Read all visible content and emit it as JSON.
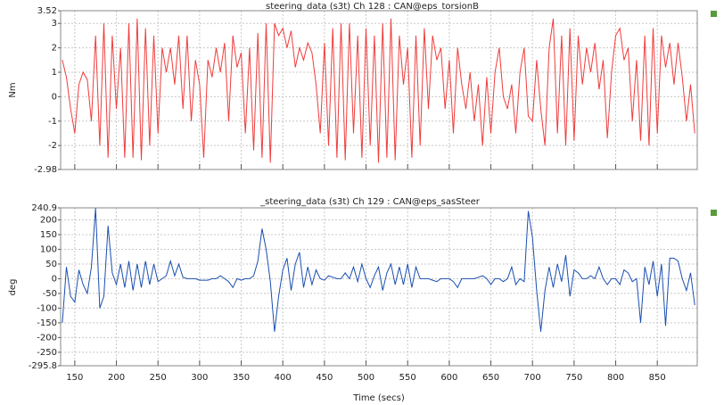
{
  "chart_data": [
    {
      "type": "line",
      "title": "_steering_data (s3t)  Ch 128 : CAN@eps_torsionB",
      "y_label": "Nm",
      "xlim": [
        133,
        898
      ],
      "ylim": [
        -2.98,
        3.52
      ],
      "yticks": [
        -2.98,
        -2,
        -1,
        0,
        1,
        2,
        3,
        3.52
      ],
      "grid": true,
      "x": [
        135,
        140,
        145,
        150,
        155,
        160,
        165,
        170,
        175,
        180,
        185,
        190,
        195,
        200,
        205,
        210,
        215,
        220,
        225,
        230,
        235,
        240,
        245,
        250,
        255,
        260,
        265,
        270,
        275,
        280,
        285,
        290,
        295,
        300,
        305,
        310,
        315,
        320,
        325,
        330,
        335,
        340,
        345,
        350,
        355,
        360,
        365,
        370,
        375,
        380,
        385,
        390,
        395,
        400,
        405,
        410,
        415,
        420,
        425,
        430,
        435,
        440,
        445,
        450,
        455,
        460,
        465,
        470,
        475,
        480,
        485,
        490,
        495,
        500,
        505,
        510,
        515,
        520,
        525,
        530,
        535,
        540,
        545,
        550,
        555,
        560,
        565,
        570,
        575,
        580,
        585,
        590,
        595,
        600,
        605,
        610,
        615,
        620,
        625,
        630,
        635,
        640,
        645,
        650,
        655,
        660,
        665,
        670,
        675,
        680,
        685,
        690,
        695,
        700,
        705,
        710,
        715,
        720,
        725,
        730,
        735,
        740,
        745,
        750,
        755,
        760,
        765,
        770,
        775,
        780,
        785,
        790,
        795,
        800,
        805,
        810,
        815,
        820,
        825,
        830,
        835,
        840,
        845,
        850,
        855,
        860,
        865,
        870,
        875,
        880,
        885,
        890,
        895
      ],
      "series": [
        {
          "color": "#f03c3c",
          "values": [
            1.5,
            0.8,
            -0.5,
            -1.5,
            0.5,
            1,
            0.7,
            -1,
            2.5,
            -2,
            3,
            -2.5,
            2.5,
            -0.5,
            2,
            -2.5,
            3,
            -2.5,
            3.2,
            -2.6,
            2.8,
            -2,
            2.5,
            -1.5,
            2,
            1,
            2,
            0.5,
            2.5,
            -0.5,
            2.5,
            -1,
            1.5,
            0.5,
            -2.5,
            1.5,
            0.8,
            2,
            1,
            2.2,
            -1,
            2.5,
            1.2,
            1.8,
            -1.5,
            2,
            -2.2,
            2.6,
            -2.5,
            3,
            -2.7,
            3,
            2.5,
            2.8,
            2,
            2.7,
            1.2,
            2,
            1.5,
            2.2,
            1.8,
            0.5,
            -1.5,
            2.2,
            -2,
            2.8,
            -2.5,
            3,
            -2.6,
            3,
            -1.5,
            2.5,
            -2.5,
            2.8,
            -2,
            2.5,
            -2.7,
            3,
            -2.5,
            3.2,
            -2.6,
            2.5,
            0.5,
            2,
            -2.5,
            2.5,
            -2,
            2.8,
            -0.5,
            2.5,
            1.5,
            2,
            -0.5,
            1.5,
            -1.5,
            2,
            0.5,
            -0.5,
            1,
            -1,
            0.5,
            -2,
            0.8,
            -1.5,
            1,
            2,
            0,
            -0.5,
            0.5,
            -1.5,
            1,
            2,
            -0.8,
            -1,
            1.5,
            -0.5,
            -2,
            2,
            3.2,
            -1.5,
            2.5,
            -2,
            2.8,
            -1.8,
            2.5,
            0.5,
            2,
            1,
            2.2,
            0.3,
            1.5,
            -1.7,
            1,
            2.5,
            2.8,
            1.5,
            2,
            -1,
            1.5,
            -1.8,
            2.5,
            -2,
            2.8,
            -1.5,
            2.5,
            1.2,
            2.2,
            0.5,
            2.2,
            0.8,
            -1,
            0.5,
            -1.5
          ]
        }
      ]
    },
    {
      "type": "line",
      "title": "_steering_data (s3t)  Ch 129 : CAN@eps_sasSteer",
      "y_label": "deg",
      "x_label": "Time (secs)",
      "xlim": [
        133,
        898
      ],
      "ylim": [
        -295.8,
        240.9
      ],
      "yticks": [
        -295.8,
        -250,
        -200,
        -150,
        -100,
        -50,
        0,
        50,
        100,
        150,
        200,
        240.9
      ],
      "xticks": [
        150,
        200,
        250,
        300,
        350,
        400,
        450,
        500,
        550,
        600,
        650,
        700,
        750,
        800,
        850
      ],
      "grid": true,
      "x": [
        135,
        140,
        145,
        150,
        155,
        160,
        165,
        170,
        175,
        180,
        185,
        190,
        195,
        200,
        205,
        210,
        215,
        220,
        225,
        230,
        235,
        240,
        245,
        250,
        255,
        260,
        265,
        270,
        275,
        280,
        285,
        290,
        295,
        300,
        305,
        310,
        315,
        320,
        325,
        330,
        335,
        340,
        345,
        350,
        355,
        360,
        365,
        370,
        375,
        380,
        385,
        390,
        395,
        400,
        405,
        410,
        415,
        420,
        425,
        430,
        435,
        440,
        445,
        450,
        455,
        460,
        465,
        470,
        475,
        480,
        485,
        490,
        495,
        500,
        505,
        510,
        515,
        520,
        525,
        530,
        535,
        540,
        545,
        550,
        555,
        560,
        565,
        570,
        575,
        580,
        585,
        590,
        595,
        600,
        605,
        610,
        615,
        620,
        625,
        630,
        635,
        640,
        645,
        650,
        655,
        660,
        665,
        670,
        675,
        680,
        685,
        690,
        695,
        700,
        705,
        710,
        715,
        720,
        725,
        730,
        735,
        740,
        745,
        750,
        755,
        760,
        765,
        770,
        775,
        780,
        785,
        790,
        795,
        800,
        805,
        810,
        815,
        820,
        825,
        830,
        835,
        840,
        845,
        850,
        855,
        860,
        865,
        870,
        875,
        880,
        885,
        890,
        895
      ],
      "series": [
        {
          "color": "#1a4fb0",
          "values": [
            -150,
            40,
            -60,
            -80,
            30,
            -20,
            -50,
            40,
            240,
            -100,
            -60,
            180,
            20,
            -20,
            50,
            -30,
            60,
            -40,
            50,
            -30,
            60,
            -20,
            50,
            -10,
            0,
            10,
            60,
            10,
            50,
            5,
            0,
            0,
            0,
            -5,
            -5,
            -5,
            0,
            0,
            10,
            0,
            -10,
            -30,
            0,
            -5,
            0,
            0,
            10,
            60,
            170,
            100,
            -10,
            -180,
            -60,
            30,
            70,
            -40,
            50,
            90,
            -30,
            40,
            -20,
            30,
            0,
            -5,
            10,
            5,
            0,
            0,
            20,
            0,
            40,
            -10,
            50,
            0,
            -30,
            10,
            40,
            -40,
            20,
            50,
            -20,
            40,
            -20,
            50,
            -30,
            40,
            0,
            0,
            0,
            -5,
            -10,
            0,
            0,
            0,
            -10,
            -30,
            0,
            0,
            0,
            0,
            5,
            10,
            0,
            -20,
            0,
            0,
            -10,
            0,
            40,
            -20,
            0,
            -10,
            230,
            140,
            -40,
            -180,
            -40,
            40,
            -30,
            50,
            -10,
            80,
            -60,
            30,
            20,
            0,
            0,
            10,
            0,
            40,
            0,
            -20,
            0,
            0,
            -20,
            30,
            20,
            -10,
            0,
            -150,
            40,
            -20,
            60,
            -60,
            50,
            -160,
            70,
            70,
            60,
            0,
            -40,
            20,
            -90
          ]
        }
      ]
    }
  ]
}
